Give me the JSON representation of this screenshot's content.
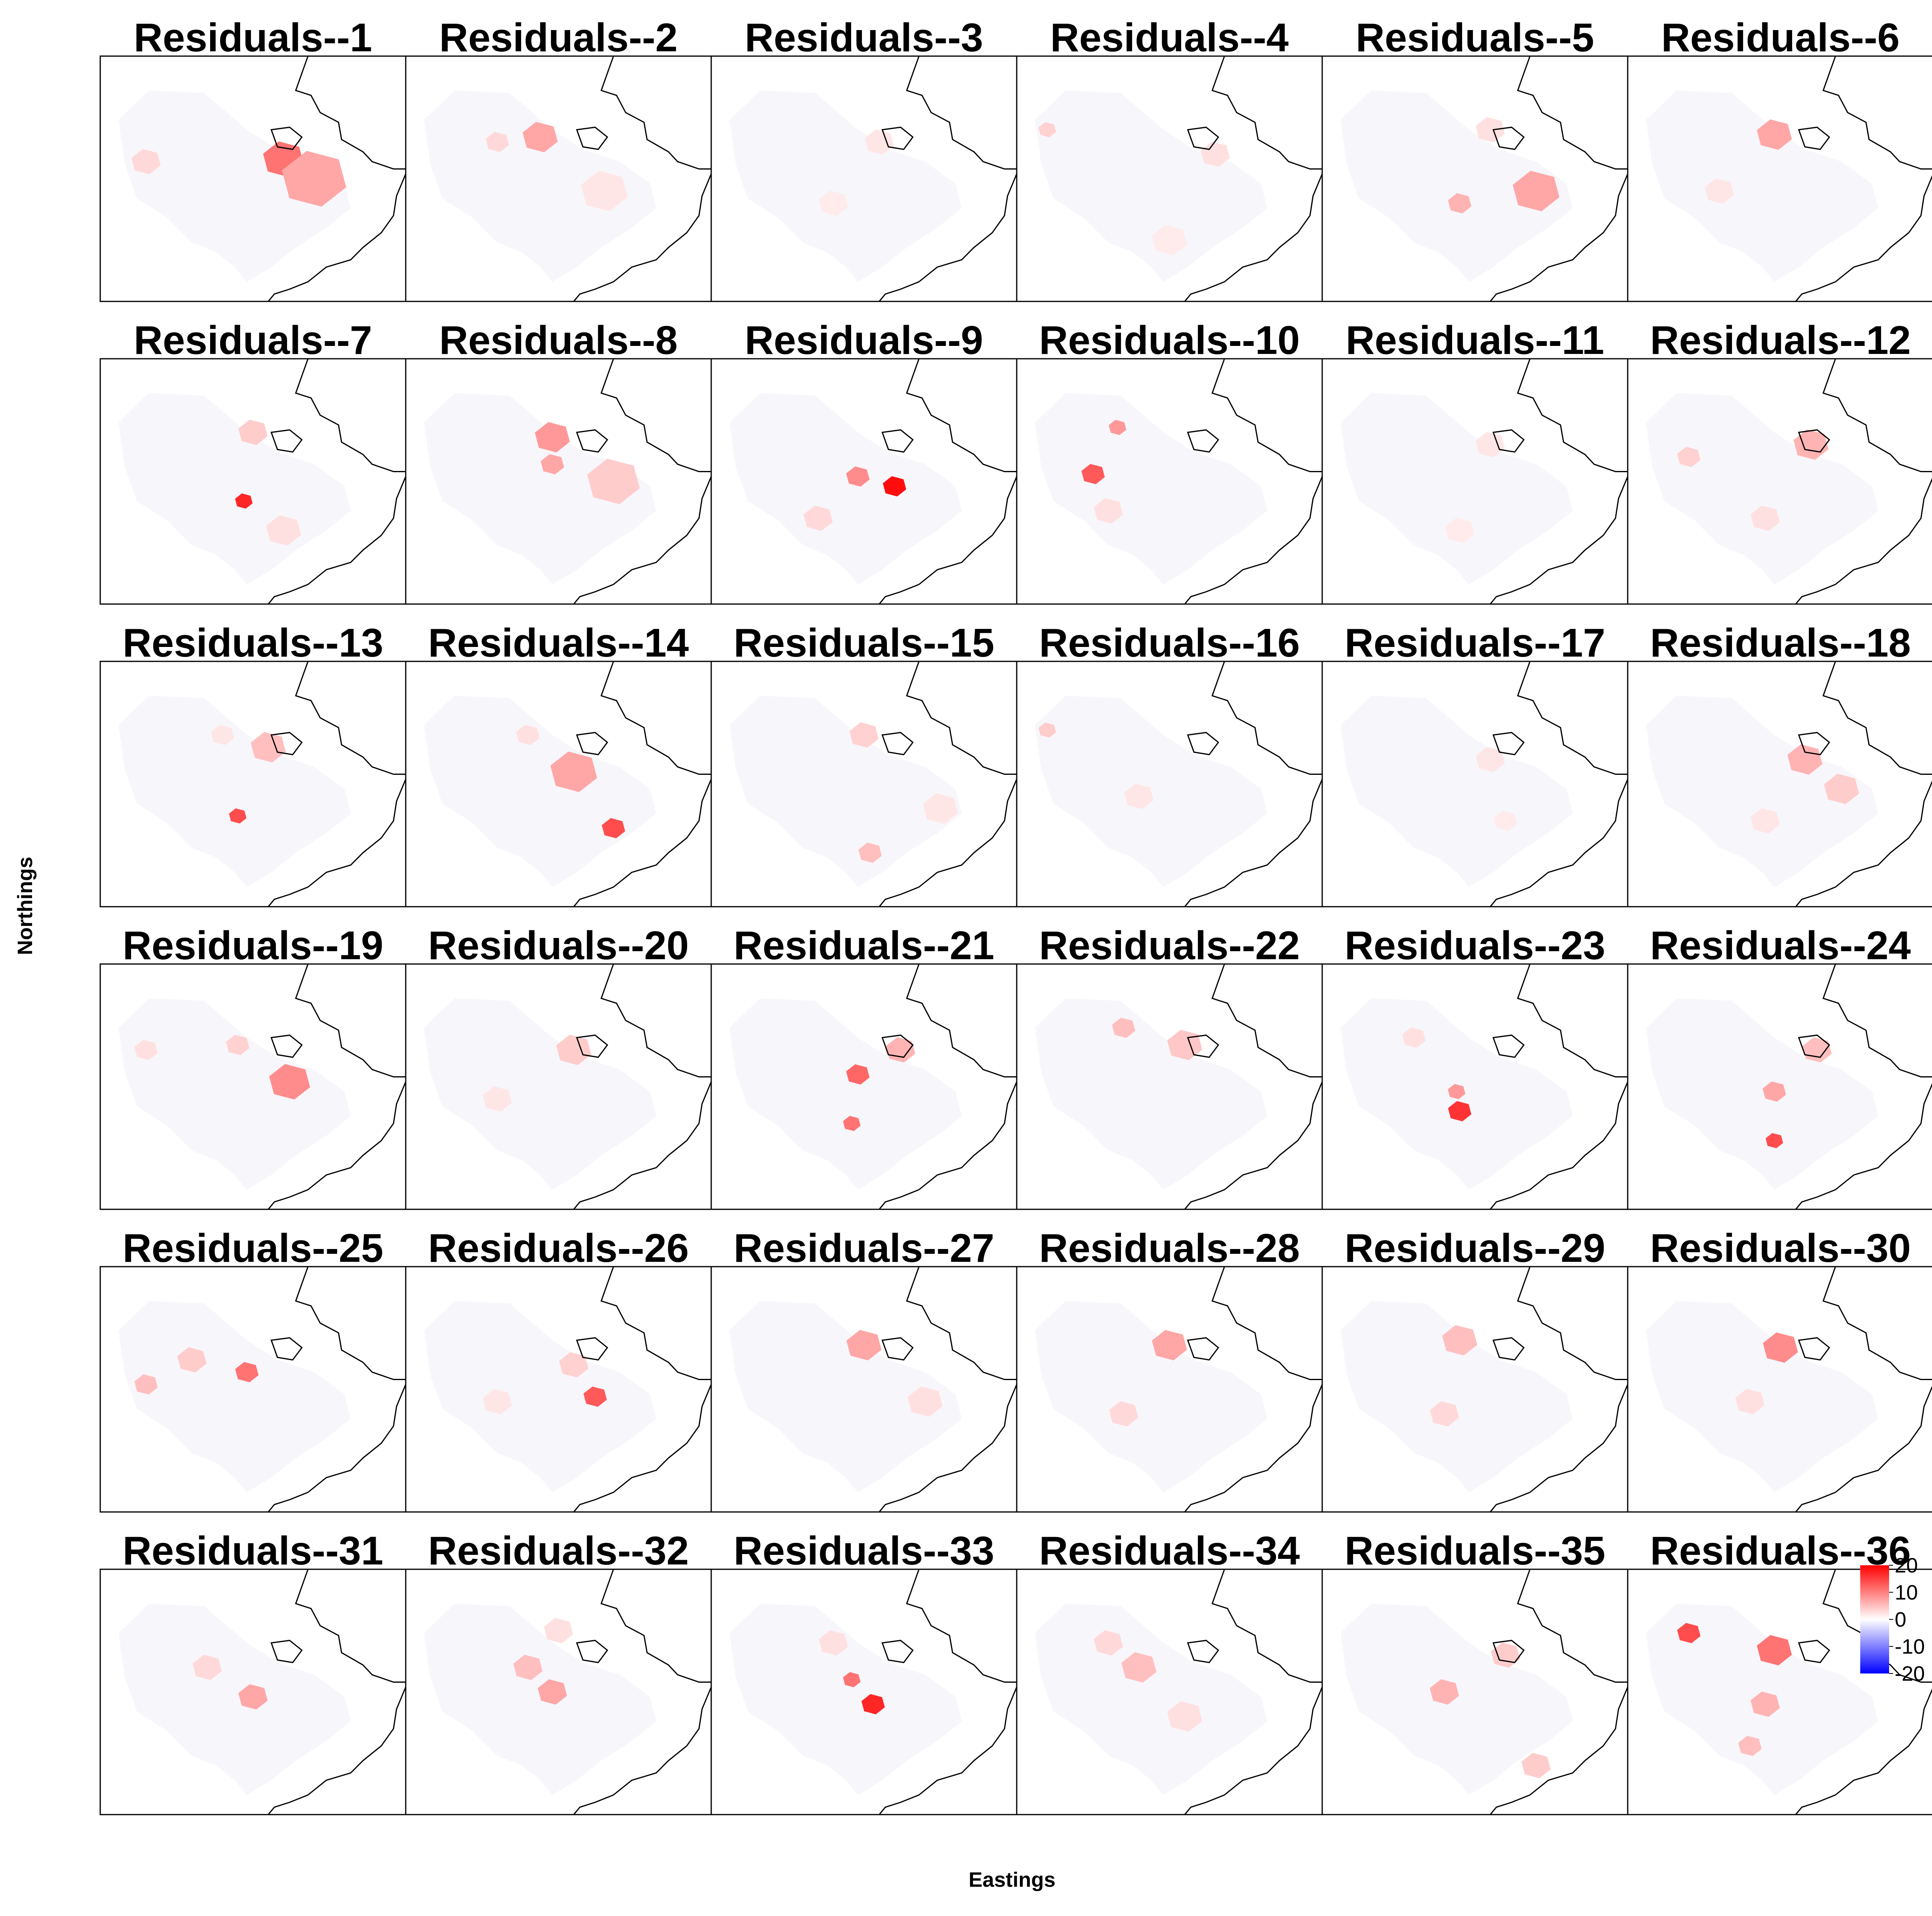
{
  "chart_data": {
    "type": "heatmap",
    "layout": "lattice 6x6 small-multiples map panels",
    "xlabel": "Eastings",
    "ylabel": "Northings",
    "panel_titles": [
      "Residuals--1",
      "Residuals--2",
      "Residuals--3",
      "Residuals--4",
      "Residuals--5",
      "Residuals--6",
      "Residuals--7",
      "Residuals--8",
      "Residuals--9",
      "Residuals--10",
      "Residuals--11",
      "Residuals--12",
      "Residuals--13",
      "Residuals--14",
      "Residuals--15",
      "Residuals--16",
      "Residuals--17",
      "Residuals--18",
      "Residuals--19",
      "Residuals--20",
      "Residuals--21",
      "Residuals--22",
      "Residuals--23",
      "Residuals--24",
      "Residuals--25",
      "Residuals--26",
      "Residuals--27",
      "Residuals--28",
      "Residuals--29",
      "Residuals--30",
      "Residuals--31",
      "Residuals--32",
      "Residuals--33",
      "Residuals--34",
      "Residuals--35",
      "Residuals--36"
    ],
    "colorbar": {
      "ticks": [
        "20",
        "10",
        "0",
        "-10",
        "-20"
      ],
      "range": [
        -20,
        20
      ],
      "colors": [
        "#0000ff",
        "#ffffff",
        "#ff0000"
      ]
    },
    "grid": false
  },
  "colors": {
    "background": "#ffffff",
    "land_base": "#f7f6fb",
    "outline": "#000000",
    "frame": "#000000"
  }
}
